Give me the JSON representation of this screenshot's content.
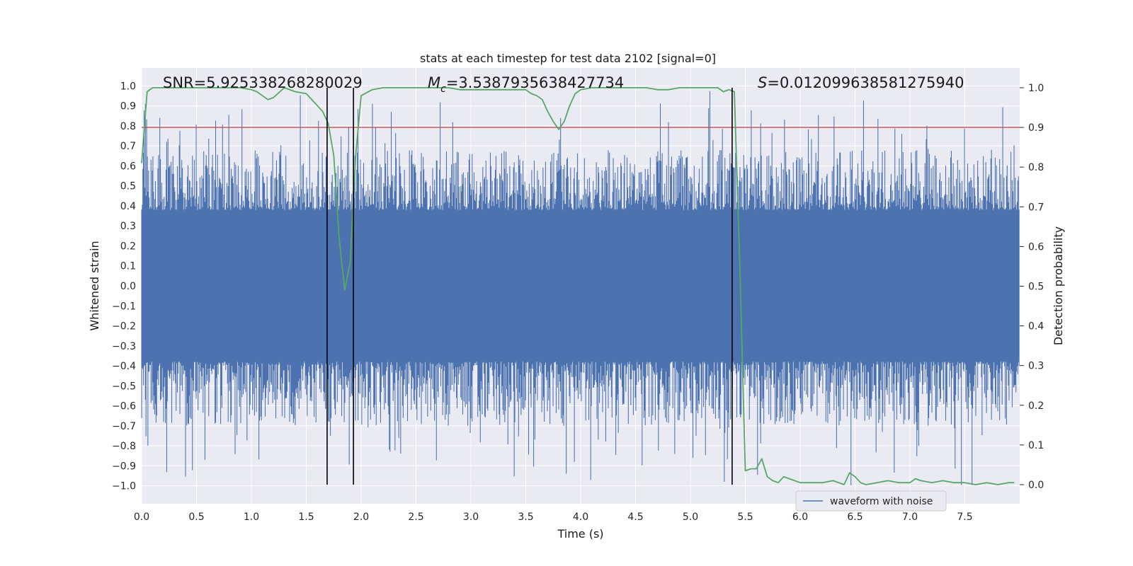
{
  "chart_data": {
    "type": "line",
    "title": "stats at each timestep for test data 2102 [signal=0]",
    "xlabel": "Time (s)",
    "ylabel_left": "Whitened strain",
    "ylabel_right": "Detection probability",
    "xlim": [
      0.0,
      8.0
    ],
    "ylim_left": [
      -1.09,
      1.09
    ],
    "ylim_right": [
      0.0,
      1.0
    ],
    "x_ticks": [
      0.0,
      0.5,
      1.0,
      1.5,
      2.0,
      2.5,
      3.0,
      3.5,
      4.0,
      4.5,
      5.0,
      5.5,
      6.0,
      6.5,
      7.0,
      7.5
    ],
    "x_tick_labels": [
      "0.0",
      "0.5",
      "1.0",
      "1.5",
      "2.0",
      "2.5",
      "3.0",
      "3.5",
      "4.0",
      "4.5",
      "5.0",
      "5.5",
      "6.0",
      "6.5",
      "7.0",
      "7.5"
    ],
    "y_left_ticks": [
      1.0,
      0.9,
      0.8,
      0.7,
      0.6,
      0.5,
      0.4,
      0.3,
      0.2,
      0.1,
      0.0,
      -0.1,
      -0.2,
      -0.3,
      -0.4,
      -0.5,
      -0.6,
      -0.7,
      -0.8,
      -0.9,
      -1.0
    ],
    "y_left_tick_labels": [
      "1.0",
      "0.9",
      "0.8",
      "0.7",
      "0.6",
      "0.5",
      "0.4",
      "0.3",
      "0.2",
      "0.1",
      "0.0",
      "−0.1",
      "−0.2",
      "−0.3",
      "−0.4",
      "−0.5",
      "−0.6",
      "−0.7",
      "−0.8",
      "−0.9",
      "−1.0"
    ],
    "y_right_ticks": [
      1.0,
      0.9,
      0.8,
      0.7,
      0.6,
      0.5,
      0.4,
      0.3,
      0.2,
      0.1,
      0.0
    ],
    "y_right_tick_labels": [
      "1.0",
      "0.9",
      "0.8",
      "0.7",
      "0.6",
      "0.5",
      "0.4",
      "0.3",
      "0.2",
      "0.1",
      "0.0"
    ],
    "grid": true,
    "legend": {
      "entries": [
        "waveform with noise"
      ],
      "placement": "lower-right"
    },
    "annotations": {
      "snr": "SNR=5.925338268280029",
      "mc_symbol": "M",
      "mc_sub": "c",
      "mc_value": "=3.5387935638427734",
      "s_symbol": "S",
      "s_value": "=0.012099638581275940"
    },
    "threshold_line": {
      "y_right": 0.9,
      "color": "#c44e52"
    },
    "vertical_markers": [
      1.69,
      1.93,
      5.38
    ],
    "series": [
      {
        "name": "waveform with noise",
        "axis": "left",
        "color": "#4c72b0",
        "style": "dense-noise",
        "envelope_base": 0.38,
        "peak_max": 0.98,
        "trough_min": -1.0,
        "samples": 1400
      },
      {
        "name": "detection probability",
        "axis": "right",
        "color": "#55a868",
        "x": [
          0.0,
          0.05,
          0.1,
          0.2,
          0.3,
          0.4,
          0.5,
          0.6,
          0.7,
          0.8,
          0.9,
          1.0,
          1.05,
          1.1,
          1.15,
          1.2,
          1.3,
          1.4,
          1.5,
          1.55,
          1.6,
          1.65,
          1.7,
          1.75,
          1.8,
          1.85,
          1.9,
          1.95,
          2.0,
          2.1,
          2.2,
          2.3,
          2.4,
          2.5,
          2.6,
          2.7,
          2.8,
          2.9,
          3.0,
          3.1,
          3.2,
          3.3,
          3.4,
          3.5,
          3.55,
          3.6,
          3.65,
          3.7,
          3.75,
          3.8,
          3.85,
          3.9,
          3.95,
          4.0,
          4.1,
          4.2,
          4.3,
          4.4,
          4.5,
          4.6,
          4.7,
          4.8,
          4.9,
          5.0,
          5.1,
          5.2,
          5.25,
          5.3,
          5.35,
          5.4,
          5.45,
          5.5,
          5.55,
          5.6,
          5.65,
          5.7,
          5.75,
          5.8,
          5.85,
          5.9,
          5.95,
          6.0,
          6.1,
          6.2,
          6.3,
          6.4,
          6.45,
          6.5,
          6.55,
          6.6,
          6.7,
          6.8,
          6.9,
          7.0,
          7.05,
          7.1,
          7.2,
          7.3,
          7.4,
          7.5,
          7.6,
          7.7,
          7.8,
          7.9,
          7.95
        ],
        "y": [
          0.81,
          0.99,
          1.0,
          1.0,
          1.0,
          1.0,
          1.0,
          1.0,
          1.0,
          1.0,
          1.0,
          0.995,
          0.99,
          0.98,
          0.97,
          0.975,
          1.0,
          0.99,
          0.985,
          0.97,
          0.955,
          0.94,
          0.91,
          0.83,
          0.62,
          0.49,
          0.56,
          0.83,
          0.98,
          0.995,
          1.0,
          1.0,
          1.0,
          1.0,
          1.0,
          1.0,
          1.0,
          0.995,
          0.995,
          0.995,
          0.995,
          0.995,
          0.995,
          0.995,
          0.985,
          0.98,
          0.97,
          0.94,
          0.915,
          0.895,
          0.915,
          0.955,
          0.985,
          0.995,
          1.0,
          1.0,
          1.0,
          1.0,
          1.0,
          1.0,
          0.995,
          0.995,
          1.0,
          1.0,
          1.0,
          1.0,
          1.0,
          0.99,
          0.995,
          0.99,
          0.55,
          0.035,
          0.04,
          0.04,
          0.065,
          0.02,
          0.01,
          0.005,
          0.02,
          0.015,
          0.01,
          0.005,
          0.005,
          0.005,
          0.01,
          0.0,
          0.03,
          0.02,
          0.005,
          0.0,
          0.005,
          0.01,
          0.005,
          0.005,
          0.015,
          0.01,
          0.005,
          0.01,
          0.005,
          0.005,
          0.0,
          0.005,
          0.0,
          0.005,
          0.005
        ]
      }
    ]
  }
}
